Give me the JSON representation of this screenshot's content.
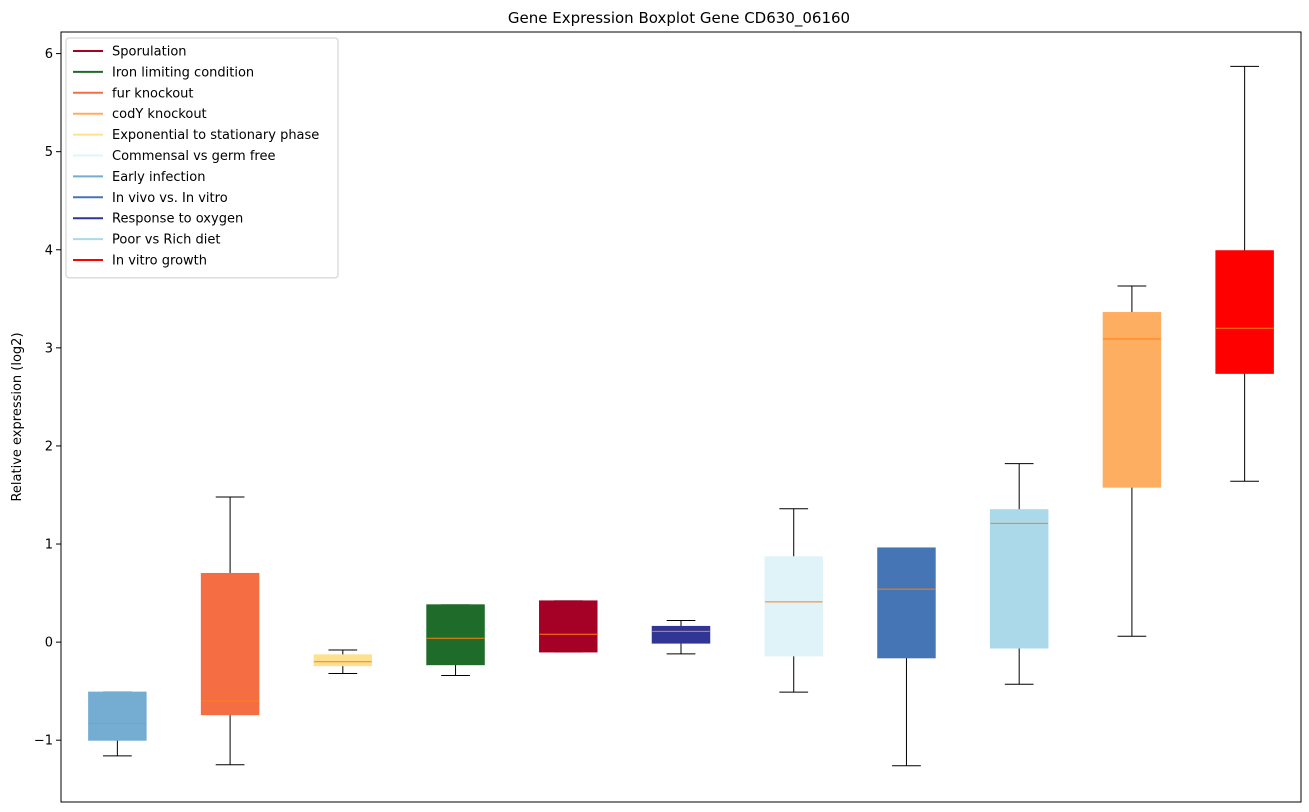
{
  "chart_data": {
    "type": "boxplot",
    "title": "Gene Expression Boxplot Gene CD630_06160",
    "xlabel": "",
    "ylabel": "Relative expression (log2)",
    "ylim": [
      -1.63,
      6.22
    ],
    "yticks": [
      -1,
      0,
      1,
      2,
      3,
      4,
      5,
      6
    ],
    "ytick_labels": [
      "−1",
      "0",
      "1",
      "2",
      "3",
      "4",
      "5",
      "6"
    ],
    "grid": false,
    "legend_position": "upper-left",
    "legend": [
      {
        "name": "Sporulation",
        "color": "#a50026"
      },
      {
        "name": "Iron limiting condition",
        "color": "#1f6b2a"
      },
      {
        "name": "fur knockout",
        "color": "#f46d43"
      },
      {
        "name": "codY knockout",
        "color": "#fdae61"
      },
      {
        "name": "Exponential to stationary phase",
        "color": "#fee090"
      },
      {
        "name": "Commensal vs germ free",
        "color": "#e0f3f8"
      },
      {
        "name": "Early infection",
        "color": "#74add1"
      },
      {
        "name": "In vivo vs. In vitro",
        "color": "#4575b4"
      },
      {
        "name": "Response to oxygen",
        "color": "#313695"
      },
      {
        "name": "Poor vs Rich diet",
        "color": "#abd9e9"
      },
      {
        "name": "In vitro growth",
        "color": "#ff0000"
      }
    ],
    "boxes": [
      {
        "condition": "Early infection",
        "color": "#74add1",
        "whisker_low": -1.16,
        "q1": -1.0,
        "median": -0.83,
        "q3": -0.51,
        "whisker_high": -0.51
      },
      {
        "condition": "fur knockout",
        "color": "#f46d43",
        "whisker_low": -1.25,
        "q1": -0.74,
        "median": -0.6,
        "q3": 0.7,
        "whisker_high": 1.48
      },
      {
        "condition": "Exponential to stationary phase",
        "color": "#fee090",
        "whisker_low": -0.32,
        "q1": -0.24,
        "median": -0.2,
        "q3": -0.13,
        "whisker_high": -0.08
      },
      {
        "condition": "Iron limiting condition",
        "color": "#1f6b2a",
        "whisker_low": -0.34,
        "q1": -0.23,
        "median": 0.04,
        "q3": 0.38,
        "whisker_high": 0.38
      },
      {
        "condition": "Sporulation",
        "color": "#a50026",
        "whisker_low": -0.1,
        "q1": -0.1,
        "median": 0.08,
        "q3": 0.42,
        "whisker_high": 0.42
      },
      {
        "condition": "Response to oxygen",
        "color": "#313695",
        "whisker_low": -0.12,
        "q1": -0.01,
        "median": 0.11,
        "q3": 0.16,
        "whisker_high": 0.22
      },
      {
        "condition": "Commensal vs germ free",
        "color": "#e0f3f8",
        "whisker_low": -0.51,
        "q1": -0.14,
        "median": 0.41,
        "q3": 0.87,
        "whisker_high": 1.36
      },
      {
        "condition": "In vivo vs. In vitro",
        "color": "#4575b4",
        "whisker_low": -1.26,
        "q1": -0.16,
        "median": 0.54,
        "q3": 0.96,
        "whisker_high": 0.96
      },
      {
        "condition": "Poor vs Rich diet",
        "color": "#abd9e9",
        "whisker_low": -0.43,
        "q1": -0.06,
        "median": 1.21,
        "q3": 1.35,
        "whisker_high": 1.82
      },
      {
        "condition": "codY knockout",
        "color": "#fdae61",
        "whisker_low": 0.06,
        "q1": 1.58,
        "median": 3.09,
        "q3": 3.36,
        "whisker_high": 3.63
      },
      {
        "condition": "In vitro growth",
        "color": "#ff0000",
        "whisker_low": 1.64,
        "q1": 2.74,
        "median": 3.2,
        "q3": 3.99,
        "whisker_high": 5.87
      }
    ],
    "median_color": "#ff7f0e"
  }
}
